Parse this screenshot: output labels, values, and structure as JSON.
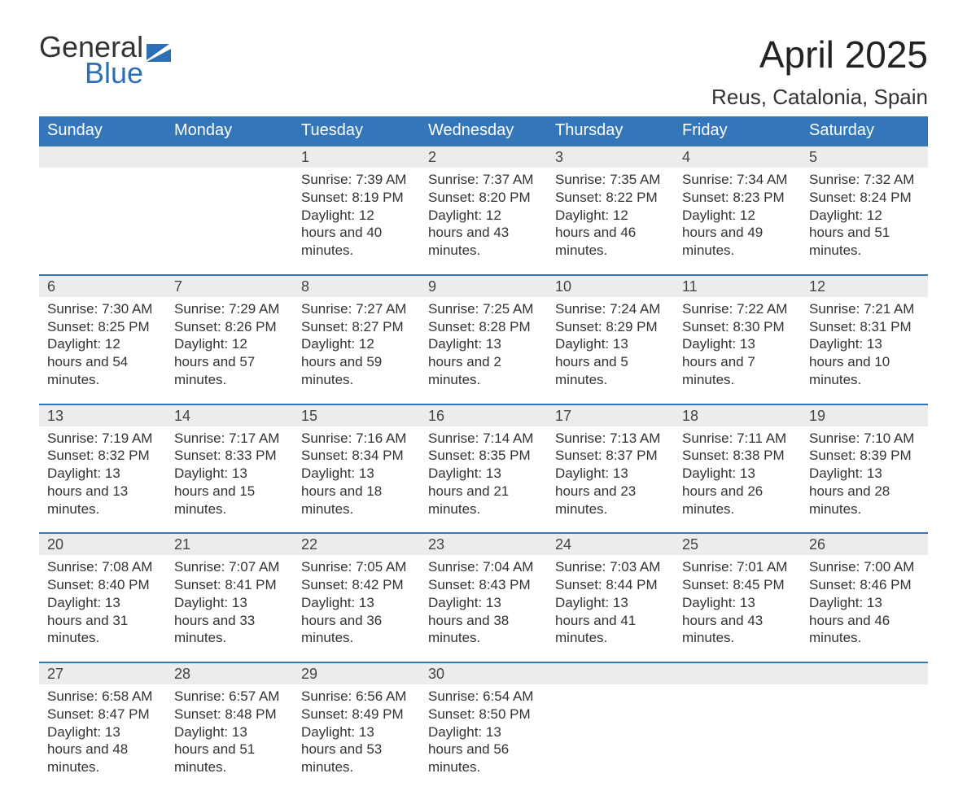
{
  "logo": {
    "word1": "General",
    "word2": "Blue",
    "word1_color": "#333333",
    "word2_color": "#2d6fb6",
    "flag_color": "#2d6fb6"
  },
  "header": {
    "month_title": "April 2025",
    "location": "Reus, Catalonia, Spain"
  },
  "style": {
    "header_bg": "#3376b9",
    "header_text": "#ffffff",
    "daynum_bg": "#ececec",
    "daynum_border": "#3376b9",
    "body_text": "#333333",
    "page_bg": "#ffffff",
    "title_fontsize": 46,
    "location_fontsize": 26,
    "th_fontsize": 20,
    "cell_fontsize": 17
  },
  "weekdays": [
    "Sunday",
    "Monday",
    "Tuesday",
    "Wednesday",
    "Thursday",
    "Friday",
    "Saturday"
  ],
  "weeks": [
    [
      null,
      null,
      {
        "n": "1",
        "sr": "7:39 AM",
        "ss": "8:19 PM",
        "dl": "12 hours and 40 minutes."
      },
      {
        "n": "2",
        "sr": "7:37 AM",
        "ss": "8:20 PM",
        "dl": "12 hours and 43 minutes."
      },
      {
        "n": "3",
        "sr": "7:35 AM",
        "ss": "8:22 PM",
        "dl": "12 hours and 46 minutes."
      },
      {
        "n": "4",
        "sr": "7:34 AM",
        "ss": "8:23 PM",
        "dl": "12 hours and 49 minutes."
      },
      {
        "n": "5",
        "sr": "7:32 AM",
        "ss": "8:24 PM",
        "dl": "12 hours and 51 minutes."
      }
    ],
    [
      {
        "n": "6",
        "sr": "7:30 AM",
        "ss": "8:25 PM",
        "dl": "12 hours and 54 minutes."
      },
      {
        "n": "7",
        "sr": "7:29 AM",
        "ss": "8:26 PM",
        "dl": "12 hours and 57 minutes."
      },
      {
        "n": "8",
        "sr": "7:27 AM",
        "ss": "8:27 PM",
        "dl": "12 hours and 59 minutes."
      },
      {
        "n": "9",
        "sr": "7:25 AM",
        "ss": "8:28 PM",
        "dl": "13 hours and 2 minutes."
      },
      {
        "n": "10",
        "sr": "7:24 AM",
        "ss": "8:29 PM",
        "dl": "13 hours and 5 minutes."
      },
      {
        "n": "11",
        "sr": "7:22 AM",
        "ss": "8:30 PM",
        "dl": "13 hours and 7 minutes."
      },
      {
        "n": "12",
        "sr": "7:21 AM",
        "ss": "8:31 PM",
        "dl": "13 hours and 10 minutes."
      }
    ],
    [
      {
        "n": "13",
        "sr": "7:19 AM",
        "ss": "8:32 PM",
        "dl": "13 hours and 13 minutes."
      },
      {
        "n": "14",
        "sr": "7:17 AM",
        "ss": "8:33 PM",
        "dl": "13 hours and 15 minutes."
      },
      {
        "n": "15",
        "sr": "7:16 AM",
        "ss": "8:34 PM",
        "dl": "13 hours and 18 minutes."
      },
      {
        "n": "16",
        "sr": "7:14 AM",
        "ss": "8:35 PM",
        "dl": "13 hours and 21 minutes."
      },
      {
        "n": "17",
        "sr": "7:13 AM",
        "ss": "8:37 PM",
        "dl": "13 hours and 23 minutes."
      },
      {
        "n": "18",
        "sr": "7:11 AM",
        "ss": "8:38 PM",
        "dl": "13 hours and 26 minutes."
      },
      {
        "n": "19",
        "sr": "7:10 AM",
        "ss": "8:39 PM",
        "dl": "13 hours and 28 minutes."
      }
    ],
    [
      {
        "n": "20",
        "sr": "7:08 AM",
        "ss": "8:40 PM",
        "dl": "13 hours and 31 minutes."
      },
      {
        "n": "21",
        "sr": "7:07 AM",
        "ss": "8:41 PM",
        "dl": "13 hours and 33 minutes."
      },
      {
        "n": "22",
        "sr": "7:05 AM",
        "ss": "8:42 PM",
        "dl": "13 hours and 36 minutes."
      },
      {
        "n": "23",
        "sr": "7:04 AM",
        "ss": "8:43 PM",
        "dl": "13 hours and 38 minutes."
      },
      {
        "n": "24",
        "sr": "7:03 AM",
        "ss": "8:44 PM",
        "dl": "13 hours and 41 minutes."
      },
      {
        "n": "25",
        "sr": "7:01 AM",
        "ss": "8:45 PM",
        "dl": "13 hours and 43 minutes."
      },
      {
        "n": "26",
        "sr": "7:00 AM",
        "ss": "8:46 PM",
        "dl": "13 hours and 46 minutes."
      }
    ],
    [
      {
        "n": "27",
        "sr": "6:58 AM",
        "ss": "8:47 PM",
        "dl": "13 hours and 48 minutes."
      },
      {
        "n": "28",
        "sr": "6:57 AM",
        "ss": "8:48 PM",
        "dl": "13 hours and 51 minutes."
      },
      {
        "n": "29",
        "sr": "6:56 AM",
        "ss": "8:49 PM",
        "dl": "13 hours and 53 minutes."
      },
      {
        "n": "30",
        "sr": "6:54 AM",
        "ss": "8:50 PM",
        "dl": "13 hours and 56 minutes."
      },
      null,
      null,
      null
    ]
  ],
  "labels": {
    "sunrise": "Sunrise: ",
    "sunset": "Sunset: ",
    "daylight": "Daylight: "
  }
}
